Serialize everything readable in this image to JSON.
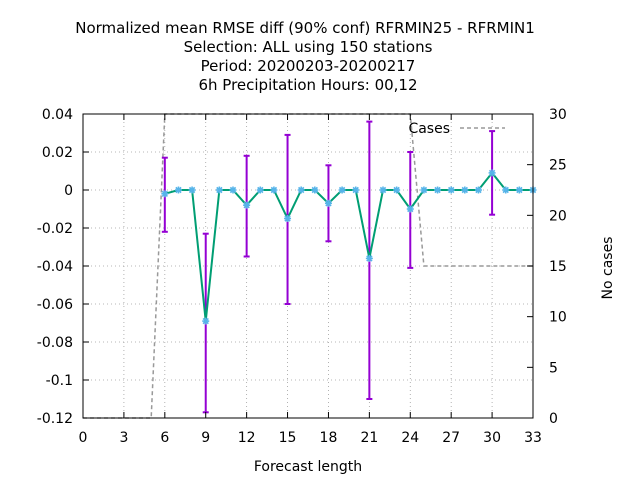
{
  "chart_data": {
    "type": "line",
    "title_lines": [
      "Normalized mean RMSE diff (90% conf) RFRMIN25 - RFRMIN1",
      "Selection: ALL using   150 stations",
      "Period: 20200203-20200217",
      "6h Precipitation   Hours:  00,12"
    ],
    "xlabel": "Forecast length",
    "ylabel": "",
    "y2label": "No cases",
    "xlim": [
      0,
      33
    ],
    "ylim": [
      -0.12,
      0.04
    ],
    "y2lim": [
      0,
      30
    ],
    "xticks": [
      0,
      3,
      6,
      9,
      12,
      15,
      18,
      21,
      24,
      27,
      30,
      33
    ],
    "yticks": [
      0.04,
      0.02,
      0,
      -0.02,
      -0.04,
      -0.06,
      -0.08,
      -0.1,
      -0.12
    ],
    "ytick_labels": [
      "0.04",
      "0.02",
      "0",
      "-0.02",
      "-0.04",
      "-0.06",
      "-0.08",
      "-0.1",
      "-0.12"
    ],
    "y2ticks": [
      30,
      25,
      20,
      15,
      10,
      5,
      0
    ],
    "grid": true,
    "legend_position": "top-right",
    "series": [
      {
        "role": "mean_diff",
        "color": "#009e73",
        "marker_color": "#56b4e9",
        "x": [
          6,
          7,
          8,
          9,
          10,
          11,
          12,
          13,
          14,
          15,
          16,
          17,
          18,
          19,
          20,
          21,
          22,
          23,
          24,
          25,
          26,
          27,
          28,
          29,
          30,
          31,
          32,
          33
        ],
        "y": [
          -0.002,
          0,
          0,
          -0.069,
          0,
          0,
          -0.008,
          0,
          0,
          -0.015,
          0,
          0,
          -0.007,
          0,
          0,
          -0.036,
          0,
          0,
          -0.01,
          0,
          0,
          0,
          0,
          0,
          0.009,
          0,
          0,
          0
        ]
      },
      {
        "role": "confidence_interval",
        "color": "#9400d3",
        "bars": [
          {
            "x": 6,
            "low": -0.022,
            "high": 0.017
          },
          {
            "x": 9,
            "low": -0.117,
            "high": -0.023
          },
          {
            "x": 12,
            "low": -0.035,
            "high": 0.018
          },
          {
            "x": 15,
            "low": -0.06,
            "high": 0.029
          },
          {
            "x": 18,
            "low": -0.027,
            "high": 0.013
          },
          {
            "x": 21,
            "low": -0.11,
            "high": 0.036
          },
          {
            "x": 24,
            "low": -0.041,
            "high": 0.02
          },
          {
            "x": 30,
            "low": -0.013,
            "high": 0.031
          }
        ]
      },
      {
        "name": "Cases",
        "axis": "y2",
        "color": "#999999",
        "x": [
          0,
          1,
          2,
          3,
          4,
          5,
          6,
          7,
          8,
          9,
          10,
          11,
          12,
          13,
          14,
          15,
          16,
          17,
          18,
          19,
          20,
          21,
          22,
          23,
          24,
          25,
          26,
          27,
          28,
          29,
          30,
          31,
          32,
          33
        ],
        "y": [
          0,
          0,
          0,
          0,
          0,
          0,
          30,
          30,
          30,
          30,
          30,
          30,
          30,
          30,
          30,
          30,
          30,
          30,
          30,
          30,
          30,
          30,
          30,
          30,
          30,
          15,
          15,
          15,
          15,
          15,
          15,
          15,
          15,
          15
        ]
      }
    ]
  }
}
